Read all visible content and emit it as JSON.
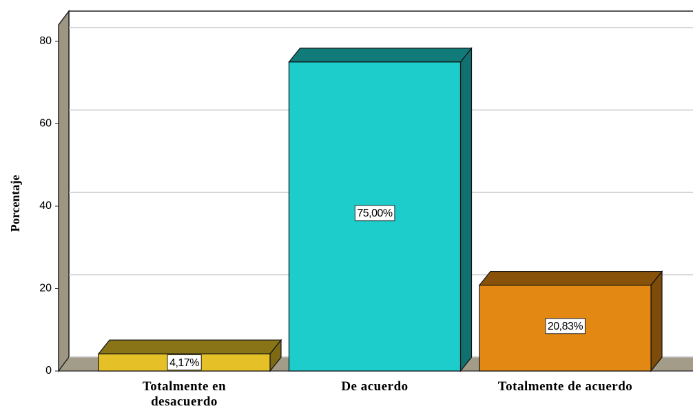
{
  "chart_data": {
    "type": "bar3d",
    "y_label": "Porcentaje",
    "categories": [
      "Totalmente en desacuerdo",
      "De acuerdo",
      "Totalmente de acuerdo"
    ],
    "values": [
      4.17,
      75.0,
      20.83
    ],
    "value_labels": [
      "4,17%",
      "75,00%",
      "20,83%"
    ],
    "colors": [
      "#e5c127",
      "#1dcdcc",
      "#e38913"
    ],
    "ylim": [
      0,
      84
    ],
    "yticks": [
      0,
      20,
      40,
      60,
      80
    ],
    "grid": true
  }
}
